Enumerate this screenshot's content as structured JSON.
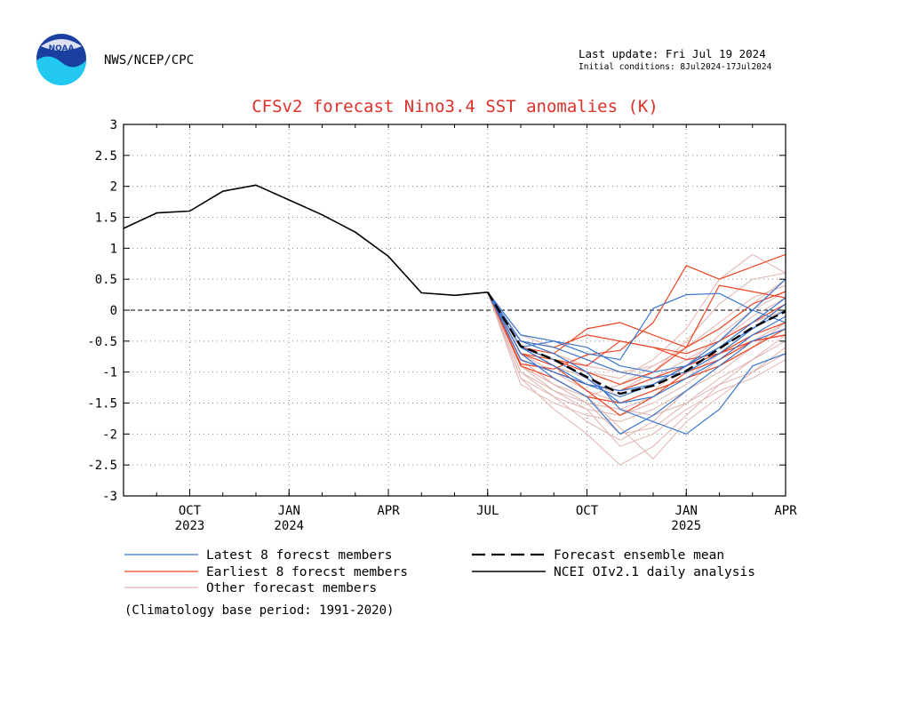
{
  "header": {
    "agency": "NWS/NCEP/CPC",
    "last_update": "Last update: Fri Jul 19 2024",
    "initial_conditions": "Initial conditions: 8Jul2024-17Jul2024",
    "logo_text": "NOAA"
  },
  "footnote": "(Climatology base period: 1991-2020)",
  "colors": {
    "latest": "#3a76d0",
    "earliest": "#ee4422",
    "other": "#e0b4ae",
    "analysis": "#000000",
    "title": "#e0302a"
  },
  "chart_data": {
    "type": "line",
    "title": "CFSv2 forecast Nino3.4 SST anomalies (K)",
    "xlabel": "",
    "ylabel": "",
    "ylim": [
      -3,
      3
    ],
    "xlim": [
      0,
      20
    ],
    "grid": true,
    "zero_line": "dashed",
    "y_ticks": [
      -3,
      -2.5,
      -2,
      -1.5,
      -1,
      -0.5,
      0,
      0.5,
      1,
      1.5,
      2,
      2.5,
      3
    ],
    "y_tick_labels": [
      "-3",
      "-2.5",
      "-2",
      "-1.5",
      "-1",
      "-0.5",
      "0",
      "0.5",
      "1",
      "1.5",
      "2",
      "2.5",
      "3"
    ],
    "x_ticks": [
      {
        "x": 2,
        "label": "OCT",
        "year": "2023"
      },
      {
        "x": 5,
        "label": "JAN",
        "year": "2024"
      },
      {
        "x": 8,
        "label": "APR",
        "year": ""
      },
      {
        "x": 11,
        "label": "JUL",
        "year": ""
      },
      {
        "x": 14,
        "label": "OCT",
        "year": ""
      },
      {
        "x": 17,
        "label": "JAN",
        "year": "2025"
      },
      {
        "x": 20,
        "label": "APR",
        "year": ""
      }
    ],
    "legend": [
      {
        "key": "latest",
        "label": "Latest 8 forecst members",
        "style": "thin"
      },
      {
        "key": "earliest",
        "label": "Earliest 8 forecst members",
        "style": "thin"
      },
      {
        "key": "other",
        "label": "Other forecast members",
        "style": "thin"
      },
      {
        "key": "mean",
        "label": "Forecast ensemble mean",
        "style": "dashed"
      },
      {
        "key": "analysis",
        "label": "NCEI OIv2.1 daily analysis",
        "style": "solid"
      }
    ],
    "analysis": {
      "x": [
        0,
        1,
        2,
        3,
        4,
        5,
        6,
        7,
        8,
        9,
        10,
        11
      ],
      "y": [
        1.32,
        1.57,
        1.6,
        1.92,
        2.02,
        1.78,
        1.54,
        1.26,
        0.87,
        0.28,
        0.24,
        0.29
      ]
    },
    "ensemble_mean": {
      "x": [
        11,
        12,
        13,
        14,
        15,
        16,
        17,
        18,
        19,
        20
      ],
      "y": [
        0.29,
        -0.58,
        -0.8,
        -1.08,
        -1.35,
        -1.22,
        -0.98,
        -0.62,
        -0.28,
        -0.02
      ]
    },
    "members_x": [
      11,
      12,
      13,
      14,
      15,
      16,
      17,
      18,
      19,
      20
    ],
    "series": [
      {
        "group": "other",
        "y": [
          0.29,
          -0.9,
          -1.2,
          -1.5,
          -1.6,
          -1.4,
          -1.1,
          -0.7,
          -0.3,
          0.1
        ]
      },
      {
        "group": "other",
        "y": [
          0.29,
          -1.0,
          -1.4,
          -1.8,
          -2.1,
          -1.8,
          -1.3,
          -0.9,
          -0.5,
          -0.2
        ]
      },
      {
        "group": "other",
        "y": [
          0.29,
          -0.8,
          -1.0,
          -1.2,
          -1.3,
          -1.0,
          -0.5,
          0.1,
          0.5,
          0.6
        ]
      },
      {
        "group": "other",
        "y": [
          0.29,
          -1.1,
          -1.6,
          -2.0,
          -2.5,
          -2.2,
          -1.7,
          -1.2,
          -0.8,
          -0.4
        ]
      },
      {
        "group": "other",
        "y": [
          0.29,
          -0.6,
          -0.8,
          -1.0,
          -1.1,
          -0.8,
          -0.3,
          0.5,
          0.9,
          0.6
        ]
      },
      {
        "group": "other",
        "y": [
          0.29,
          -0.7,
          -1.1,
          -1.4,
          -1.9,
          -2.4,
          -1.8,
          -1.4,
          -1.0,
          -0.7
        ]
      },
      {
        "group": "other",
        "y": [
          0.29,
          -1.2,
          -1.5,
          -1.7,
          -1.8,
          -1.6,
          -1.3,
          -1.0,
          -0.6,
          -0.2
        ]
      },
      {
        "group": "other",
        "y": [
          0.29,
          -0.5,
          -0.7,
          -0.9,
          -1.0,
          -0.9,
          -0.6,
          -0.2,
          0.2,
          0.4
        ]
      },
      {
        "group": "other",
        "y": [
          0.29,
          -0.9,
          -1.3,
          -1.6,
          -1.7,
          -1.5,
          -1.2,
          -0.8,
          -0.5,
          -0.3
        ]
      },
      {
        "group": "other",
        "y": [
          0.29,
          -0.8,
          -1.2,
          -1.5,
          -2.0,
          -1.9,
          -1.5,
          -1.1,
          -0.8,
          -0.5
        ]
      },
      {
        "group": "other",
        "y": [
          0.29,
          -0.6,
          -0.9,
          -1.1,
          -1.4,
          -1.2,
          -0.9,
          -0.4,
          0.0,
          0.3
        ]
      },
      {
        "group": "other",
        "y": [
          0.29,
          -1.0,
          -1.3,
          -1.5,
          -1.6,
          -1.7,
          -1.5,
          -1.2,
          -1.0,
          -0.6
        ]
      },
      {
        "group": "other",
        "y": [
          0.29,
          -0.7,
          -1.0,
          -1.3,
          -1.5,
          -1.3,
          -0.9,
          -0.5,
          -0.1,
          0.2
        ]
      },
      {
        "group": "other",
        "y": [
          0.29,
          -0.9,
          -1.2,
          -1.4,
          -1.2,
          -0.9,
          -0.6,
          -0.3,
          0.1,
          0.5
        ]
      },
      {
        "group": "other",
        "y": [
          0.29,
          -1.1,
          -1.4,
          -1.6,
          -2.2,
          -2.0,
          -1.6,
          -1.3,
          -1.1,
          -0.8
        ]
      },
      {
        "group": "other",
        "y": [
          0.29,
          -0.4,
          -0.6,
          -0.8,
          -1.0,
          -1.1,
          -0.8,
          -0.5,
          -0.2,
          0.0
        ]
      },
      {
        "group": "latest",
        "y": [
          0.29,
          -0.5,
          -0.7,
          -1.0,
          -1.6,
          -1.8,
          -2.0,
          -1.6,
          -0.9,
          -0.7
        ]
      },
      {
        "group": "latest",
        "y": [
          0.29,
          -0.6,
          -0.9,
          -1.2,
          -1.4,
          -1.2,
          -0.9,
          -0.5,
          0.0,
          0.5
        ]
      },
      {
        "group": "latest",
        "y": [
          0.29,
          -0.7,
          -1.1,
          -1.4,
          -2.0,
          -1.7,
          -1.3,
          -0.9,
          -0.5,
          -0.3
        ]
      },
      {
        "group": "latest",
        "y": [
          0.29,
          -0.5,
          -0.6,
          -0.8,
          -1.0,
          -1.1,
          -1.0,
          -0.7,
          -0.3,
          0.1
        ]
      },
      {
        "group": "latest",
        "y": [
          0.29,
          -0.6,
          -0.5,
          -0.7,
          -0.8,
          0.03,
          0.25,
          0.27,
          0.0,
          -0.2
        ]
      },
      {
        "group": "latest",
        "y": [
          0.29,
          -0.4,
          -0.5,
          -0.6,
          -0.9,
          -1.0,
          -0.9,
          -0.6,
          -0.2,
          0.2
        ]
      },
      {
        "group": "latest",
        "y": [
          0.29,
          -0.8,
          -1.0,
          -1.2,
          -1.3,
          -1.2,
          -0.9,
          -0.6,
          -0.3,
          0.0
        ]
      },
      {
        "group": "latest",
        "y": [
          0.29,
          -0.6,
          -0.8,
          -1.1,
          -1.5,
          -1.4,
          -1.1,
          -0.8,
          -0.4,
          -0.1
        ]
      },
      {
        "group": "earliest",
        "y": [
          0.29,
          -0.87,
          -0.95,
          -0.72,
          -0.65,
          -0.2,
          0.72,
          0.5,
          0.7,
          0.9
        ]
      },
      {
        "group": "earliest",
        "y": [
          0.29,
          -0.6,
          -0.8,
          -1.0,
          -1.2,
          -1.0,
          -0.6,
          0.4,
          0.3,
          0.2
        ]
      },
      {
        "group": "earliest",
        "y": [
          0.29,
          -0.7,
          -0.9,
          -1.3,
          -1.7,
          -1.4,
          -1.0,
          -0.8,
          -0.5,
          -0.4
        ]
      },
      {
        "group": "earliest",
        "y": [
          0.29,
          -0.5,
          -0.6,
          -0.4,
          -0.5,
          -0.6,
          -0.7,
          -0.5,
          -0.2,
          0.1
        ]
      },
      {
        "group": "earliest",
        "y": [
          0.29,
          -0.8,
          -1.0,
          -1.2,
          -1.3,
          -1.1,
          -0.9,
          -0.7,
          -0.4,
          -0.2
        ]
      },
      {
        "group": "earliest",
        "y": [
          0.29,
          -0.6,
          -0.7,
          -0.3,
          -0.2,
          -0.4,
          -0.6,
          -0.3,
          0.1,
          0.3
        ]
      },
      {
        "group": "earliest",
        "y": [
          0.29,
          -0.9,
          -1.1,
          -1.4,
          -1.5,
          -1.3,
          -1.1,
          -0.9,
          -0.6,
          -0.3
        ]
      },
      {
        "group": "earliest",
        "y": [
          0.29,
          -0.7,
          -0.8,
          -0.9,
          -0.5,
          -0.6,
          -0.8,
          -0.7,
          -0.5,
          -0.4
        ]
      }
    ]
  }
}
